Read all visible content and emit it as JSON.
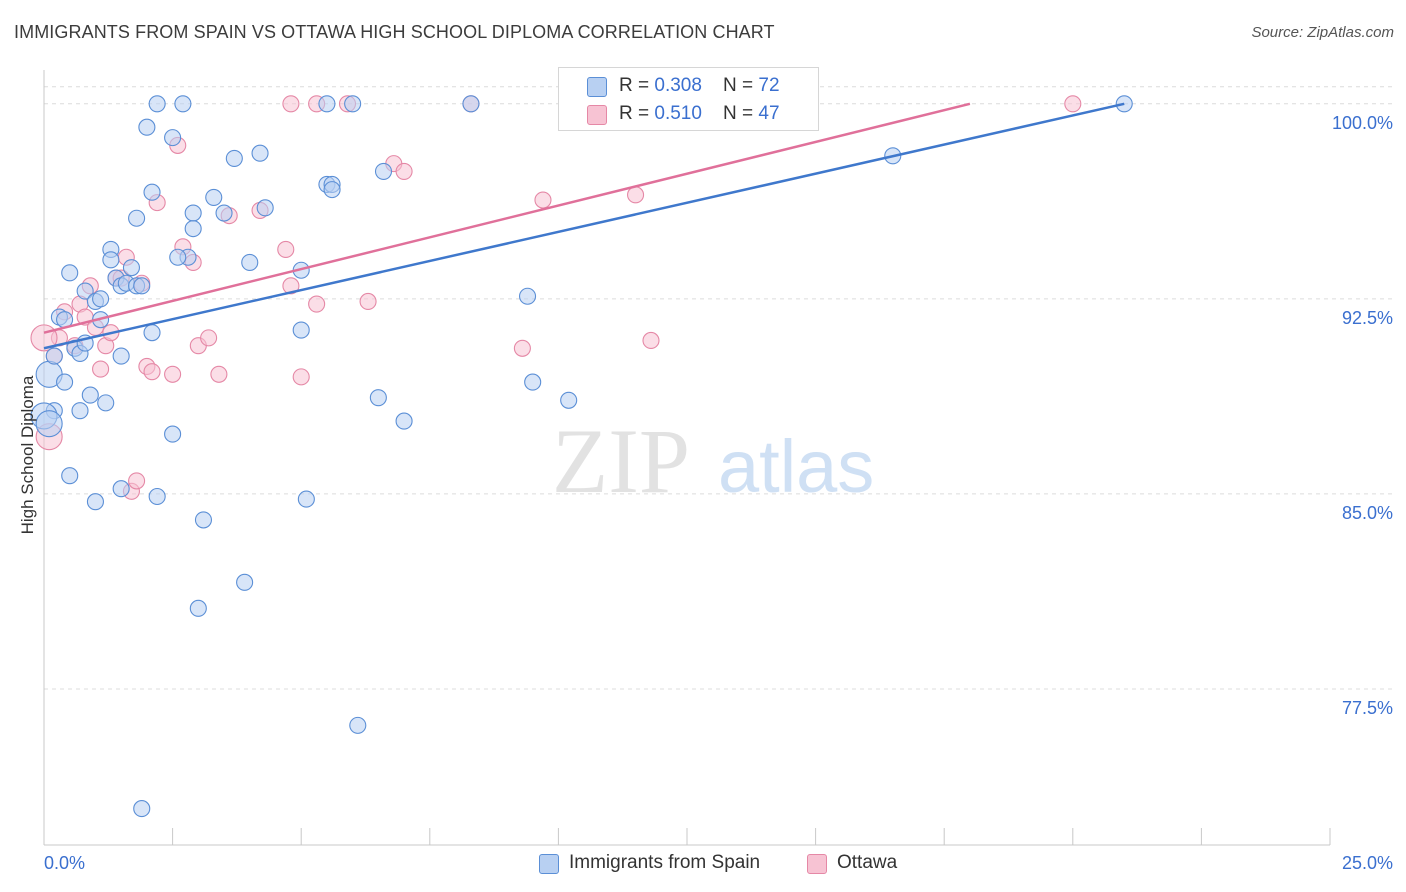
{
  "header": {
    "title": "IMMIGRANTS FROM SPAIN VS OTTAWA HIGH SCHOOL DIPLOMA CORRELATION CHART",
    "source": "Source: ZipAtlas.com"
  },
  "watermark": {
    "zip": "ZIP",
    "atlas": "atlas"
  },
  "legend": {
    "rows": [
      {
        "r_label": "R = ",
        "r_value": "0.308",
        "n_label": "N = ",
        "n_value": "72"
      },
      {
        "r_label": "R = ",
        "r_value": "0.510",
        "n_label": "N = ",
        "n_value": "47"
      }
    ]
  },
  "bottom_legend": {
    "series1": "Immigrants from Spain",
    "series2": "Ottawa"
  },
  "colors": {
    "blue_fill": "#b8d0f2",
    "blue_stroke": "#5b8fd6",
    "blue_line": "#3f78cc",
    "pink_fill": "#f7c3d3",
    "pink_stroke": "#e588a6",
    "pink_line": "#e0709a",
    "tick_label": "#3a6fcf",
    "grid": "#dcdcdc"
  },
  "chart_data": {
    "type": "scatter",
    "title": "IMMIGRANTS FROM SPAIN VS OTTAWA HIGH SCHOOL DIPLOMA CORRELATION CHART",
    "xlabel": "",
    "ylabel": "High School Diploma",
    "xlim": [
      0,
      25
    ],
    "ylim": [
      71.5,
      101.3
    ],
    "x_tick_labels": [
      "0.0%",
      "25.0%"
    ],
    "y_ticks": [
      77.5,
      85.0,
      92.5,
      100.0
    ],
    "y_tick_labels": [
      "77.5%",
      "85.0%",
      "92.5%",
      "100.0%"
    ],
    "series": [
      {
        "name": "Immigrants from Spain",
        "R": 0.308,
        "N": 72,
        "trend": {
          "x": [
            0,
            21
          ],
          "y": [
            90.6,
            100.0
          ]
        },
        "points": [
          [
            0.1,
            89.6
          ],
          [
            0.2,
            88.2
          ],
          [
            0.2,
            90.3
          ],
          [
            0.3,
            91.8
          ],
          [
            0.4,
            91.7
          ],
          [
            0.4,
            89.3
          ],
          [
            0.5,
            93.5
          ],
          [
            0.5,
            85.7
          ],
          [
            0.6,
            90.6
          ],
          [
            0.7,
            90.4
          ],
          [
            0.7,
            88.2
          ],
          [
            0.8,
            92.8
          ],
          [
            0.8,
            90.8
          ],
          [
            0.9,
            88.8
          ],
          [
            1.0,
            92.4
          ],
          [
            1.0,
            84.7
          ],
          [
            1.1,
            92.5
          ],
          [
            1.1,
            91.7
          ],
          [
            1.2,
            88.5
          ],
          [
            1.3,
            94.4
          ],
          [
            1.3,
            94.0
          ],
          [
            1.4,
            93.3
          ],
          [
            1.5,
            93.0
          ],
          [
            1.5,
            90.3
          ],
          [
            1.5,
            85.2
          ],
          [
            1.6,
            93.1
          ],
          [
            1.7,
            93.7
          ],
          [
            1.8,
            93.0
          ],
          [
            1.8,
            95.6
          ],
          [
            1.9,
            93.0
          ],
          [
            1.9,
            72.9
          ],
          [
            2.0,
            99.1
          ],
          [
            2.1,
            91.2
          ],
          [
            2.1,
            96.6
          ],
          [
            2.2,
            84.9
          ],
          [
            2.2,
            100.0
          ],
          [
            2.5,
            87.3
          ],
          [
            2.5,
            98.7
          ],
          [
            2.7,
            100.0
          ],
          [
            2.8,
            94.1
          ],
          [
            2.9,
            95.8
          ],
          [
            2.9,
            95.2
          ],
          [
            3.0,
            80.6
          ],
          [
            3.1,
            84.0
          ],
          [
            3.3,
            96.4
          ],
          [
            3.5,
            95.8
          ],
          [
            3.7,
            97.9
          ],
          [
            3.9,
            81.6
          ],
          [
            4.0,
            93.9
          ],
          [
            4.2,
            98.1
          ],
          [
            4.3,
            96.0
          ],
          [
            5.0,
            93.6
          ],
          [
            5.0,
            91.3
          ],
          [
            5.1,
            84.8
          ],
          [
            5.5,
            100.0
          ],
          [
            5.5,
            96.9
          ],
          [
            5.6,
            96.9
          ],
          [
            5.6,
            96.7
          ],
          [
            6.0,
            100.0
          ],
          [
            6.1,
            76.1
          ],
          [
            6.5,
            88.7
          ],
          [
            6.6,
            97.4
          ],
          [
            7.0,
            87.8
          ],
          [
            8.3,
            100.0
          ],
          [
            9.4,
            92.6
          ],
          [
            9.5,
            89.3
          ],
          [
            10.2,
            88.6
          ],
          [
            16.5,
            98.0
          ],
          [
            21.0,
            100.0
          ],
          [
            0.0,
            88.0
          ],
          [
            0.1,
            87.7
          ],
          [
            2.6,
            94.1
          ]
        ]
      },
      {
        "name": "Ottawa",
        "R": 0.51,
        "N": 47,
        "trend": {
          "x": [
            0,
            18
          ],
          "y": [
            91.2,
            100.0
          ]
        },
        "points": [
          [
            0.1,
            87.2
          ],
          [
            0.3,
            91.0
          ],
          [
            0.4,
            92.0
          ],
          [
            0.6,
            90.7
          ],
          [
            0.7,
            92.3
          ],
          [
            0.8,
            91.8
          ],
          [
            0.9,
            93.0
          ],
          [
            1.0,
            91.4
          ],
          [
            1.1,
            89.8
          ],
          [
            1.2,
            90.7
          ],
          [
            1.3,
            91.2
          ],
          [
            1.4,
            93.3
          ],
          [
            1.5,
            93.3
          ],
          [
            1.6,
            94.1
          ],
          [
            1.7,
            85.1
          ],
          [
            1.8,
            85.5
          ],
          [
            1.9,
            93.1
          ],
          [
            2.0,
            89.9
          ],
          [
            2.1,
            89.7
          ],
          [
            2.2,
            96.2
          ],
          [
            2.5,
            89.6
          ],
          [
            2.6,
            98.4
          ],
          [
            2.7,
            94.5
          ],
          [
            2.9,
            93.9
          ],
          [
            3.0,
            90.7
          ],
          [
            3.2,
            91.0
          ],
          [
            3.4,
            89.6
          ],
          [
            3.6,
            95.7
          ],
          [
            4.2,
            95.9
          ],
          [
            4.7,
            94.4
          ],
          [
            4.8,
            100.0
          ],
          [
            4.8,
            93.0
          ],
          [
            5.0,
            89.5
          ],
          [
            5.3,
            92.3
          ],
          [
            5.3,
            100.0
          ],
          [
            5.9,
            100.0
          ],
          [
            6.3,
            92.4
          ],
          [
            6.8,
            97.7
          ],
          [
            7.0,
            97.4
          ],
          [
            8.3,
            100.0
          ],
          [
            9.3,
            90.6
          ],
          [
            9.7,
            96.3
          ],
          [
            11.5,
            96.5
          ],
          [
            11.8,
            90.9
          ],
          [
            20.0,
            100.0
          ],
          [
            0.2,
            90.3
          ],
          [
            0.0,
            91.0
          ]
        ]
      }
    ]
  }
}
